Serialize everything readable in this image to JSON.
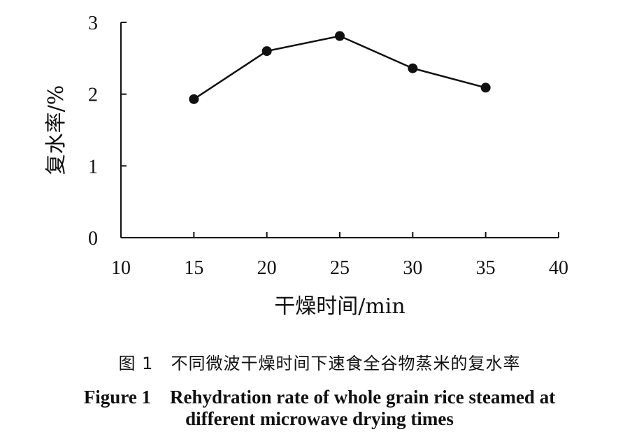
{
  "chart_data": {
    "type": "line",
    "x": [
      15,
      20,
      25,
      30,
      35
    ],
    "series": [
      {
        "values": [
          1.93,
          2.6,
          2.81,
          2.36,
          2.09
        ]
      }
    ],
    "xlabel": "干燥时间/min",
    "ylabel": "复水率/%",
    "xlim": [
      10,
      40
    ],
    "ylim": [
      0,
      3
    ],
    "xticks": [
      10,
      15,
      20,
      25,
      30,
      35,
      40
    ],
    "yticks": [
      0,
      1,
      2,
      3
    ],
    "grid": false,
    "legend": "none",
    "colors": {
      "line": "#111111",
      "marker": "#111111"
    }
  },
  "caption": {
    "cn": "图 1　不同微波干燥时间下速食全谷物蒸米的复水率",
    "en_line1": "Figure 1　Rehydration rate of whole grain rice steamed at",
    "en_line2": "different microwave drying times"
  }
}
